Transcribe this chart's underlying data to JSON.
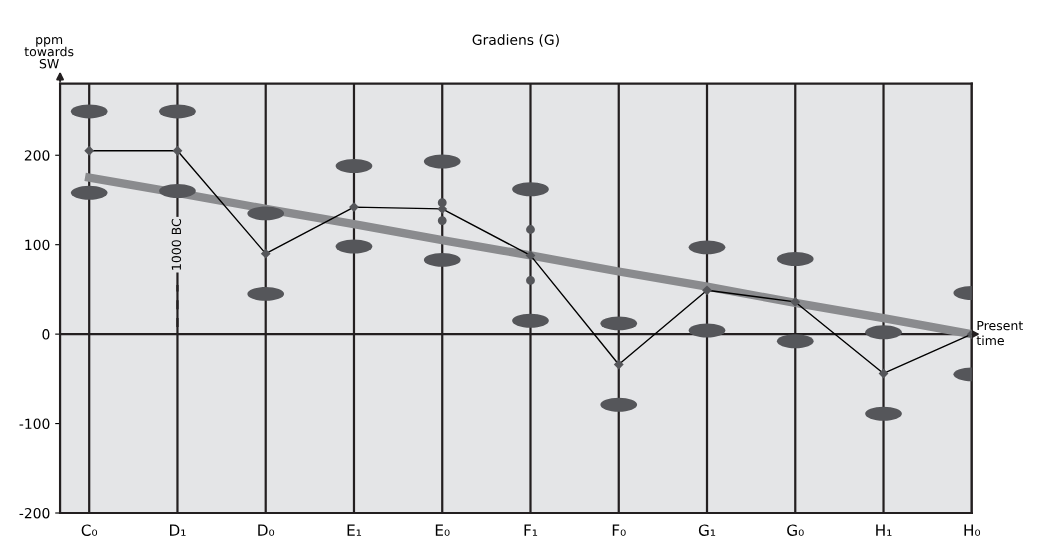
{
  "chart_data": {
    "type": "scatter",
    "title": "Gradiens (G)",
    "ylabel": "ppm\ntowards\nSW",
    "categories": [
      "C₀",
      "D₁",
      "D₀",
      "E₁",
      "E₀",
      "F₁",
      "F₀",
      "G₁",
      "G₀",
      "H₁",
      "H₀"
    ],
    "series": [
      {
        "marker": "circle",
        "color": "#55565a",
        "values": [
          249,
          249,
          135,
          188,
          193,
          162,
          12,
          97,
          84,
          2,
          46
        ]
      },
      {
        "marker": "circle",
        "color": "#55565a",
        "values": [
          158,
          160,
          45,
          98,
          83,
          15,
          -79,
          4,
          -8,
          -89,
          -45
        ]
      },
      {
        "type": "line",
        "color": "#8a8b8e",
        "marker": "none",
        "values": [
          175,
          158,
          140,
          123,
          105,
          88,
          70,
          53,
          35,
          18,
          0
        ]
      },
      {
        "type": "line",
        "color": "#000000",
        "marker": "diamond",
        "values": [
          205,
          205,
          90,
          142,
          140,
          88,
          -34,
          49,
          36,
          -44,
          0
        ]
      },
      {
        "marker": "circle",
        "color": "#55565a",
        "values": [
          null,
          null,
          null,
          null,
          147,
          117,
          null,
          null,
          null,
          null,
          null
        ]
      },
      {
        "marker": "circle",
        "color": "#55565a",
        "values": [
          null,
          null,
          null,
          null,
          127,
          60,
          null,
          null,
          null,
          null,
          null
        ]
      }
    ],
    "ylim": [
      -200,
      280
    ],
    "yticks": [
      -200,
      -100,
      0,
      100,
      200
    ],
    "grid": "x",
    "ref_lines": [
      {
        "axis": "y",
        "value": 0,
        "label": "Present\ntime"
      },
      {
        "axis": "x",
        "value": "D₁",
        "label": "1000 BC",
        "line_style": "dashed"
      }
    ]
  }
}
